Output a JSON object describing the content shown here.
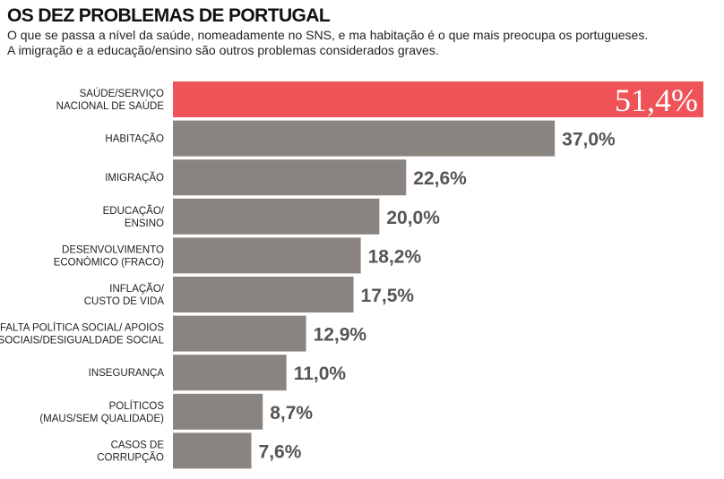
{
  "title": "OS DEZ PROBLEMAS DE PORTUGAL",
  "subtitle": [
    "O que se passa a nível da saúde, nomeadamente no SNS, e ma habitação é o que mais preocupa os portugueses.",
    "A imigração e a educação/ensino são outros problemas considerados graves."
  ],
  "colors": {
    "bar": "#8a8480",
    "highlight": "#ef5358",
    "value_text": "#555555"
  },
  "chart_data": {
    "type": "bar",
    "orientation": "horizontal",
    "categories": [
      [
        "SAÚDE/SERVIÇO",
        "NACIONAL DE SAÚDE"
      ],
      [
        "HABITAÇÃO"
      ],
      [
        "IMIGRAÇÃO"
      ],
      [
        "EDUCAÇÃO/",
        "ENSINO"
      ],
      [
        "DESENVOLVIMENTO",
        "ECONÓMICO (FRACO)"
      ],
      [
        "INFLAÇÃO/",
        "CUSTO DE VIDA"
      ],
      [
        "FALTA POLÍTICA SOCIAL/ APOIOS",
        "SOCIAIS/DESIGUALDADE SOCIAL"
      ],
      [
        "INSEGURANÇA"
      ],
      [
        "POLÍTICOS",
        "(MAUS/SEM QUALIDADE)"
      ],
      [
        "CASOS DE",
        "CORRUPÇÃO"
      ]
    ],
    "values": [
      51.4,
      37.0,
      22.6,
      20.0,
      18.2,
      17.5,
      12.9,
      11.0,
      8.7,
      7.6
    ],
    "value_labels": [
      "51,4%",
      "37,0%",
      "22,6%",
      "20,0%",
      "18,2%",
      "17,5%",
      "12,9%",
      "11,0%",
      "8,7%",
      "7,6%"
    ],
    "highlight_index": 0,
    "xlim": [
      0,
      51.4
    ],
    "grid": false,
    "legend": "none"
  }
}
